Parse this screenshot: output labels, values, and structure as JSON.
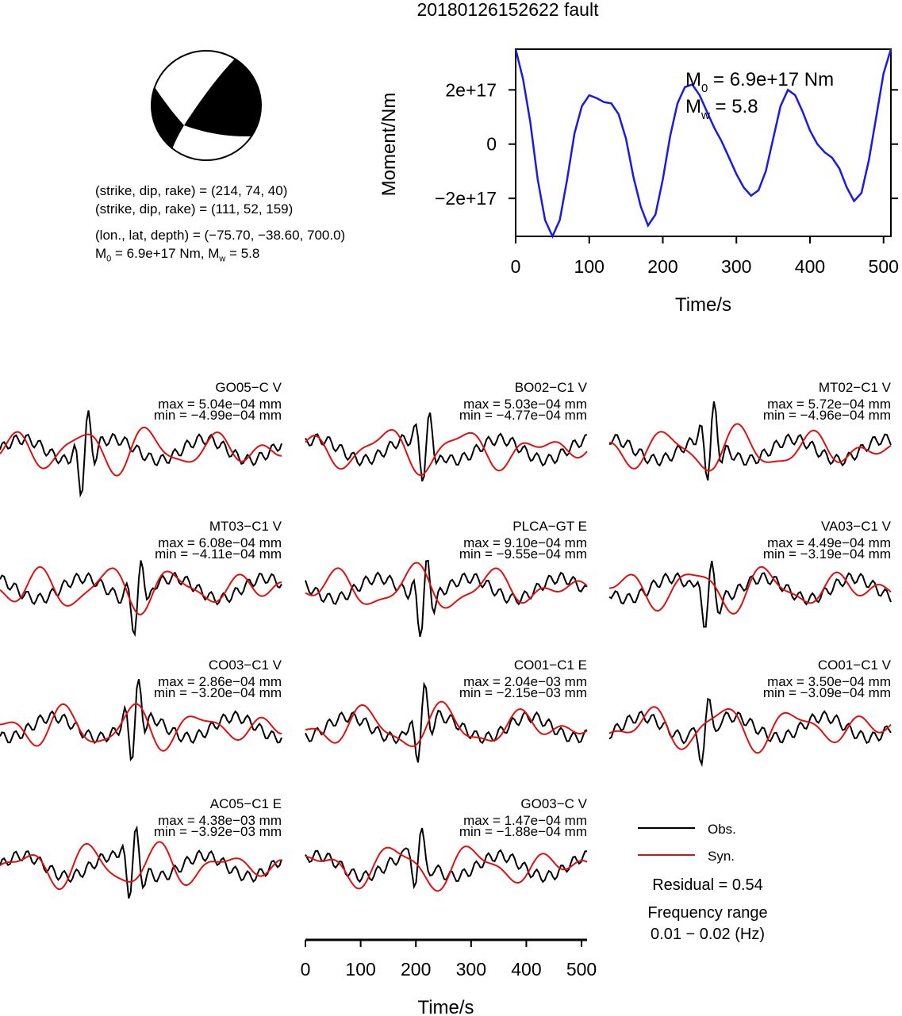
{
  "title": "20180126152622 fault",
  "mechanism": {
    "plane1": "(strike, dip, rake) = (214, 74, 40)",
    "plane2": "(strike, dip, rake) = (111, 52, 159)",
    "location": "(lon., lat, depth) = (−75.70, −38.60, 700.0)",
    "m0_prefix": "M",
    "m0_sub": "0",
    "m0_value": " =  6.9e+17 Nm, M",
    "mw_sub": "w",
    "mw_value": " = 5.8"
  },
  "chart_data": [
    {
      "type": "line",
      "name": "moment-rate",
      "xlabel": "Time/s",
      "ylabel": "Moment/Nm",
      "xlim": [
        0,
        510
      ],
      "ylim": [
        -3.4e+17,
        3.5e+17
      ],
      "xticks": [
        0,
        100,
        200,
        300,
        400,
        500
      ],
      "yticks": [
        {
          "value": 2e+17,
          "label": "2e+17"
        },
        {
          "value": 0,
          "label": "0"
        },
        {
          "value": -2e+17,
          "label": "−2e+17"
        }
      ],
      "annotation": {
        "m0_label": "M",
        "m0_sub": "0",
        "m0_text": " =  6.9e+17 Nm",
        "mw_label": "M",
        "mw_sub": "w",
        "mw_text": " = 5.8"
      },
      "color": "#1a1ae6",
      "series": [
        {
          "x": [
            0,
            10,
            20,
            30,
            40,
            50,
            60,
            70,
            80,
            90,
            100,
            110,
            120,
            130,
            140,
            150,
            160,
            170,
            180,
            190,
            200,
            210,
            220,
            230,
            240,
            250,
            260,
            270,
            280,
            290,
            300,
            310,
            320,
            330,
            340,
            350,
            360,
            370,
            380,
            390,
            400,
            410,
            420,
            430,
            440,
            450,
            460,
            470,
            480,
            490,
            500,
            510
          ],
          "y": [
            3.5e+17,
            2.4e+17,
            8e+16,
            -1.3e+17,
            -2.8e+17,
            -3.4e+17,
            -2.8e+17,
            -1.3e+17,
            4e+16,
            1.4e+17,
            1.8e+17,
            1.7e+17,
            1.55e+17,
            1.5e+17,
            1.1e+17,
            2e+16,
            -1.2e+17,
            -2.3e+17,
            -3e+17,
            -2.6e+17,
            -1.3e+17,
            3e+16,
            1.5e+17,
            2.1e+17,
            2.2e+17,
            1.8e+17,
            1.2e+17,
            6e+16,
            1e+16,
            -5e+16,
            -1.1e+17,
            -1.6e+17,
            -1.9e+17,
            -1.7e+17,
            -1e+17,
            2e+16,
            1.4e+17,
            2e+17,
            1.8e+17,
            1.2e+17,
            5e+16,
            0.0,
            -3e+16,
            -5e+16,
            -9e+16,
            -1.6e+17,
            -2.1e+17,
            -1.8e+17,
            -6e+16,
            1e+17,
            2.6e+17,
            3.5e+17
          ]
        }
      ]
    },
    {
      "type": "line",
      "name": "waveform-comparison",
      "xlabel": "Time/s",
      "xlim": [
        0,
        510
      ],
      "xticks": [
        0,
        100,
        200,
        300,
        400,
        500
      ],
      "legend": [
        {
          "name": "Obs.",
          "color": "#000000"
        },
        {
          "name": "Syn.",
          "color": "#dd1111"
        }
      ],
      "residual": "Residual = 0.54",
      "freq_title": "Frequency range",
      "freq_range": "0.01 − 0.02 (Hz)",
      "stations": [
        {
          "name": "GO05−C V",
          "max": "max = 5.04e−04 mm",
          "min": "min = −4.99e−04 mm"
        },
        {
          "name": "BO02−C1 V",
          "max": "max = 5.03e−04 mm",
          "min": "min = −4.77e−04 mm"
        },
        {
          "name": "MT02−C1 V",
          "max": "max = 5.72e−04 mm",
          "min": "min = −4.96e−04 mm"
        },
        {
          "name": "MT03−C1 V",
          "max": "max = 6.08e−04 mm",
          "min": "min = −4.11e−04 mm"
        },
        {
          "name": "PLCA−GT E",
          "max": "max = 9.10e−04 mm",
          "min": "min = −9.55e−04 mm"
        },
        {
          "name": "VA03−C1 V",
          "max": "max = 4.49e−04 mm",
          "min": "min = −3.19e−04 mm"
        },
        {
          "name": "CO03−C1 V",
          "max": "max = 2.86e−04 mm",
          "min": "min = −3.20e−04 mm"
        },
        {
          "name": "CO01−C1 E",
          "max": "max = 2.04e−03 mm",
          "min": "min = −2.15e−03 mm"
        },
        {
          "name": "CO01−C1 V",
          "max": "max = 3.50e−04 mm",
          "min": "min = −3.09e−04 mm"
        },
        {
          "name": "AC05−C1 E",
          "max": "max = 4.38e−03 mm",
          "min": "min = −3.92e−03 mm"
        },
        {
          "name": "GO03−C V",
          "max": "max = 1.47e−04 mm",
          "min": "min = −1.88e−04 mm"
        }
      ]
    }
  ]
}
